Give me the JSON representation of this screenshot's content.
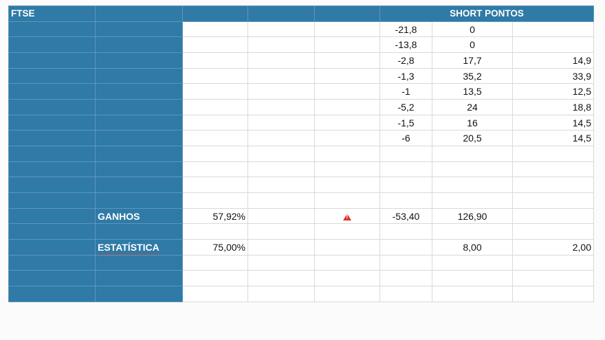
{
  "header": {
    "title": "FTSE",
    "group_title": "SHORT PONTOS"
  },
  "rows": [
    [
      "-21,8",
      "0",
      ""
    ],
    [
      "-13,8",
      "0",
      ""
    ],
    [
      "-2,8",
      "17,7",
      "14,9"
    ],
    [
      "-1,3",
      "35,2",
      "33,9"
    ],
    [
      "-1",
      "13,5",
      "12,5"
    ],
    [
      "-5,2",
      "24",
      "18,8"
    ],
    [
      "-1,5",
      "16",
      "14,5"
    ],
    [
      "-6",
      "20,5",
      "14,5"
    ]
  ],
  "ganhos": {
    "label": "GANHOS",
    "percent": "57,92%",
    "warning_icon": "warning-triangle-icon",
    "v1": "-53,40",
    "v2": "126,90"
  },
  "estatistica": {
    "label": "ESTATÍSTICA",
    "percent": "75,00%",
    "v2": "8,00",
    "v3": "2,00"
  }
}
